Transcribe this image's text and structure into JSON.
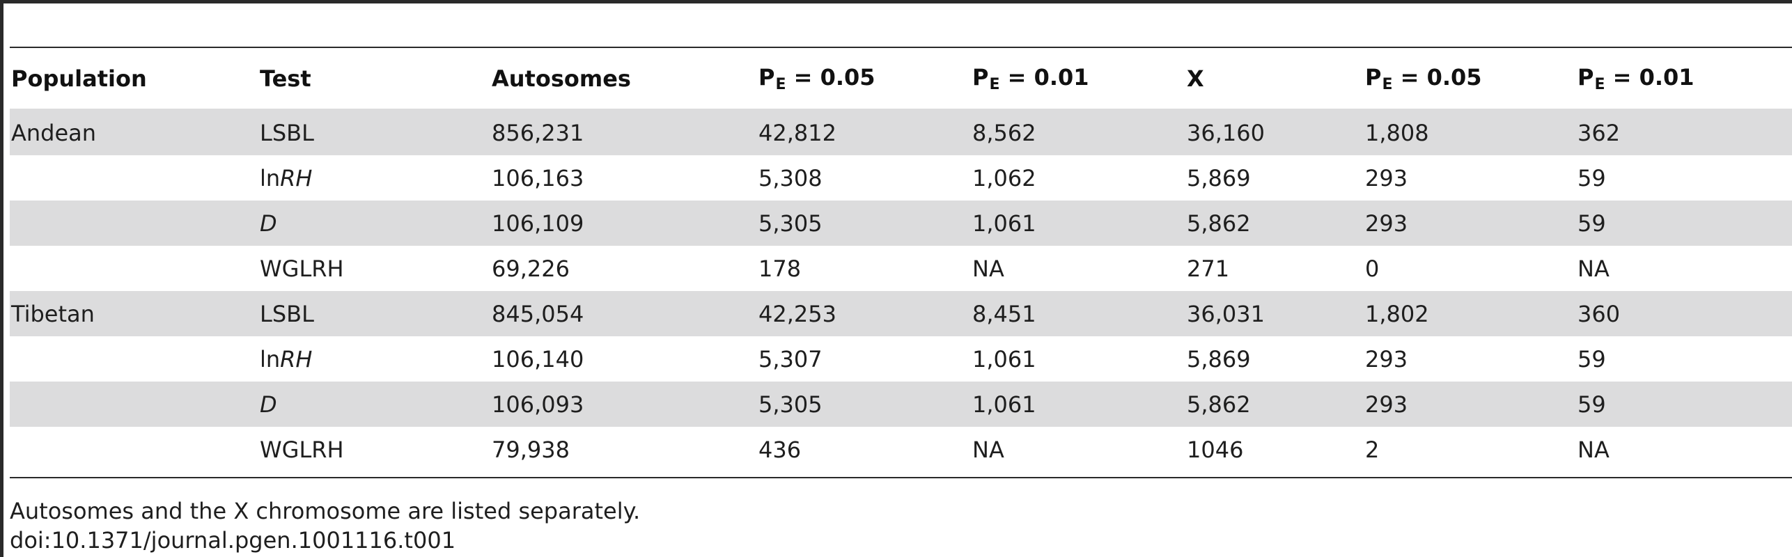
{
  "table": {
    "headers": [
      {
        "main": "Population",
        "sub": ""
      },
      {
        "main": "Test",
        "sub": ""
      },
      {
        "main": "Autosomes",
        "sub": ""
      },
      {
        "main": "P",
        "sub": "E",
        "tail": " = 0.05"
      },
      {
        "main": "P",
        "sub": "E",
        "tail": " = 0.01"
      },
      {
        "main": "X",
        "sub": ""
      },
      {
        "main": "P",
        "sub": "E",
        "tail": " = 0.05"
      },
      {
        "main": "P",
        "sub": "E",
        "tail": " = 0.01"
      }
    ],
    "rows": [
      {
        "population": "Andean",
        "test_pre": "LSBL",
        "test_it": "",
        "autosomes": "856,231",
        "a_p05": "42,812",
        "a_p01": "8,562",
        "x": "36,160",
        "x_p05": "1,808",
        "x_p01": "362"
      },
      {
        "population": "",
        "test_pre": "ln",
        "test_it": "RH",
        "autosomes": "106,163",
        "a_p05": "5,308",
        "a_p01": "1,062",
        "x": "5,869",
        "x_p05": "293",
        "x_p01": "59"
      },
      {
        "population": "",
        "test_pre": "",
        "test_it": "D",
        "autosomes": "106,109",
        "a_p05": "5,305",
        "a_p01": "1,061",
        "x": "5,862",
        "x_p05": "293",
        "x_p01": "59"
      },
      {
        "population": "",
        "test_pre": "WGLRH",
        "test_it": "",
        "autosomes": "69,226",
        "a_p05": "178",
        "a_p01": "NA",
        "x": "271",
        "x_p05": "0",
        "x_p01": "NA"
      },
      {
        "population": "Tibetan",
        "test_pre": "LSBL",
        "test_it": "",
        "autosomes": "845,054",
        "a_p05": "42,253",
        "a_p01": "8,451",
        "x": "36,031",
        "x_p05": "1,802",
        "x_p01": "360"
      },
      {
        "population": "",
        "test_pre": "ln",
        "test_it": "RH",
        "autosomes": "106,140",
        "a_p05": "5,307",
        "a_p01": "1,061",
        "x": "5,869",
        "x_p05": "293",
        "x_p01": "59"
      },
      {
        "population": "",
        "test_pre": "",
        "test_it": "D",
        "autosomes": "106,093",
        "a_p05": "5,305",
        "a_p01": "1,061",
        "x": "5,862",
        "x_p05": "293",
        "x_p01": "59"
      },
      {
        "population": "",
        "test_pre": "WGLRH",
        "test_it": "",
        "autosomes": "79,938",
        "a_p05": "436",
        "a_p01": "NA",
        "x": "1046",
        "x_p05": "2",
        "x_p01": "NA"
      }
    ]
  },
  "footnotes": {
    "note": "Autosomes and the X chromosome are listed separately.",
    "doi": "doi:10.1371/journal.pgen.1001116.t001"
  },
  "colors": {
    "shaded_row": "#dcdcdd",
    "rule": "#2a2a2a"
  }
}
